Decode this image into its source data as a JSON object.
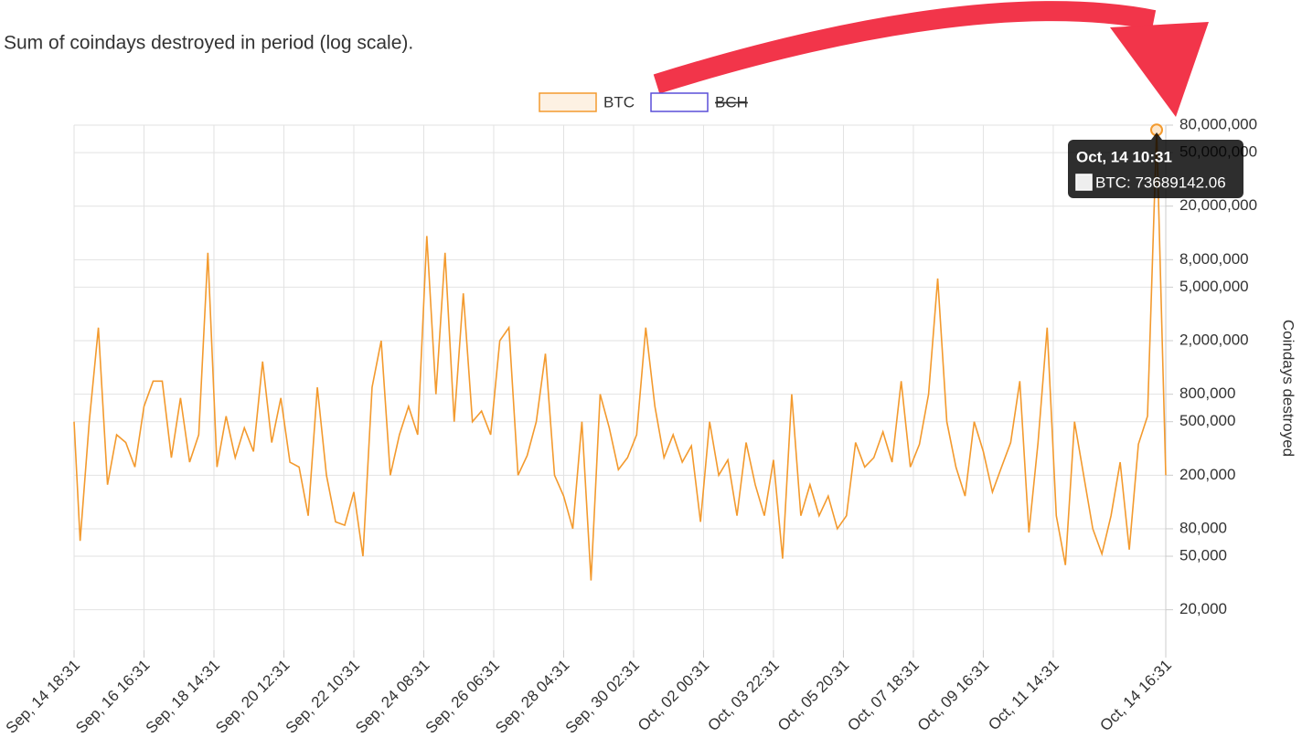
{
  "chart_data": {
    "type": "line",
    "title": "Sum of coindays destroyed in period (log scale).",
    "y_label": "Coindays destroyed",
    "log_scale": true,
    "grid": true,
    "legend": "top",
    "x": [
      "Sep, 14 18:31",
      "Sep, 14 22:31",
      "Sep, 15 04:31",
      "Sep, 15 10:31",
      "Sep, 15 16:31",
      "Sep, 15 22:31",
      "Sep, 16 04:31",
      "Sep, 16 10:31",
      "Sep, 16 16:31",
      "Sep, 16 22:31",
      "Sep, 17 04:31",
      "Sep, 17 10:31",
      "Sep, 17 16:31",
      "Sep, 17 22:31",
      "Sep, 18 04:31",
      "Sep, 18 10:31",
      "Sep, 18 16:31",
      "Sep, 18 22:31",
      "Sep, 19 04:31",
      "Sep, 19 10:31",
      "Sep, 19 16:31",
      "Sep, 19 22:31",
      "Sep, 20 04:31",
      "Sep, 20 10:31",
      "Sep, 20 16:31",
      "Sep, 20 22:31",
      "Sep, 21 04:31",
      "Sep, 21 10:31",
      "Sep, 21 16:31",
      "Sep, 21 22:31",
      "Sep, 22 04:31",
      "Sep, 22 10:31",
      "Sep, 22 16:31",
      "Sep, 22 22:31",
      "Sep, 23 04:31",
      "Sep, 23 10:31",
      "Sep, 23 16:31",
      "Sep, 23 22:31",
      "Sep, 24 04:31",
      "Sep, 24 10:31",
      "Sep, 24 16:31",
      "Sep, 24 22:31",
      "Sep, 25 04:31",
      "Sep, 25 10:31",
      "Sep, 25 16:31",
      "Sep, 25 22:31",
      "Sep, 26 04:31",
      "Sep, 26 10:31",
      "Sep, 26 16:31",
      "Sep, 26 22:31",
      "Sep, 27 04:31",
      "Sep, 27 10:31",
      "Sep, 27 16:31",
      "Sep, 27 22:31",
      "Sep, 28 04:31",
      "Sep, 28 10:31",
      "Sep, 28 16:31",
      "Sep, 28 22:31",
      "Sep, 29 04:31",
      "Sep, 29 10:31",
      "Sep, 29 16:31",
      "Sep, 29 22:31",
      "Sep, 30 04:31",
      "Sep, 30 10:31",
      "Sep, 30 16:31",
      "Sep, 30 22:31",
      "Oct, 01 04:31",
      "Oct, 01 10:31",
      "Oct, 01 16:31",
      "Oct, 01 22:31",
      "Oct, 02 04:31",
      "Oct, 02 10:31",
      "Oct, 02 16:31",
      "Oct, 02 22:31",
      "Oct, 03 04:31",
      "Oct, 03 10:31",
      "Oct, 03 16:31",
      "Oct, 03 22:31",
      "Oct, 04 04:31",
      "Oct, 04 10:31",
      "Oct, 04 16:31",
      "Oct, 04 22:31",
      "Oct, 05 04:31",
      "Oct, 05 10:31",
      "Oct, 05 16:31",
      "Oct, 05 22:31",
      "Oct, 06 04:31",
      "Oct, 06 10:31",
      "Oct, 06 16:31",
      "Oct, 06 22:31",
      "Oct, 07 04:31",
      "Oct, 07 10:31",
      "Oct, 07 16:31",
      "Oct, 07 22:31",
      "Oct, 08 04:31",
      "Oct, 08 10:31",
      "Oct, 08 16:31",
      "Oct, 08 22:31",
      "Oct, 09 04:31",
      "Oct, 09 10:31",
      "Oct, 09 16:31",
      "Oct, 09 22:31",
      "Oct, 10 04:31",
      "Oct, 10 10:31",
      "Oct, 10 16:31",
      "Oct, 10 22:31",
      "Oct, 11 04:31",
      "Oct, 11 10:31",
      "Oct, 11 16:31",
      "Oct, 11 22:31",
      "Oct, 12 04:31",
      "Oct, 12 10:31",
      "Oct, 12 16:31",
      "Oct, 12 22:31",
      "Oct, 13 04:31",
      "Oct, 13 10:31",
      "Oct, 13 16:31",
      "Oct, 13 22:31",
      "Oct, 14 04:31",
      "Oct, 14 10:31",
      "Oct, 14 16:31"
    ],
    "series": [
      {
        "name": "BTC",
        "color": "#f39a2e",
        "hidden": false,
        "values": [
          500000,
          65000,
          500000,
          2500000,
          170000,
          400000,
          350000,
          230000,
          650000,
          1000000,
          1000000,
          270000,
          750000,
          250000,
          400000,
          9000000,
          230000,
          550000,
          270000,
          450000,
          300000,
          1400000,
          350000,
          750000,
          250000,
          230000,
          100000,
          900000,
          200000,
          90000,
          85000,
          150000,
          50000,
          900000,
          2000000,
          200000,
          400000,
          650000,
          400000,
          12000000,
          800000,
          9000000,
          500000,
          4500000,
          500000,
          600000,
          400000,
          2000000,
          2500000,
          200000,
          280000,
          500000,
          1600000,
          200000,
          140000,
          80000,
          500000,
          33000,
          800000,
          450000,
          220000,
          270000,
          400000,
          2500000,
          650000,
          270000,
          400000,
          250000,
          330000,
          90000,
          500000,
          200000,
          260000,
          100000,
          350000,
          170000,
          100000,
          260000,
          48000,
          800000,
          100000,
          170000,
          100000,
          140000,
          80000,
          100000,
          350000,
          230000,
          270000,
          420000,
          250000,
          1000000,
          230000,
          340000,
          800000,
          5800000,
          500000,
          230000,
          140000,
          500000,
          300000,
          150000,
          230000,
          350000,
          1000000,
          75000,
          350000,
          2500000,
          100000,
          43000,
          500000,
          200000,
          80000,
          52000,
          100000,
          250000,
          56000,
          340000,
          550000,
          73689142.06,
          200000
        ]
      },
      {
        "name": "BCH",
        "color": "#5a4fd8",
        "hidden": true,
        "values": [
          null,
          null,
          null,
          null,
          null,
          null,
          null,
          null,
          null,
          null,
          null,
          null,
          null,
          null,
          null,
          null,
          null,
          null,
          null,
          null,
          null,
          null,
          null,
          null,
          null,
          null,
          null,
          null,
          null,
          null,
          null,
          null,
          null,
          null,
          null,
          null,
          null,
          null,
          null,
          null,
          null,
          null,
          null,
          null,
          null,
          null,
          null,
          null,
          null,
          null,
          null,
          null,
          null,
          null,
          null,
          null,
          null,
          null,
          null,
          null,
          null,
          null,
          null,
          null,
          null,
          null,
          null,
          null,
          null,
          null,
          null,
          null,
          null,
          null,
          null,
          null,
          null,
          null,
          null,
          null,
          null,
          null,
          null,
          null,
          null,
          null,
          null,
          null,
          null,
          null,
          null,
          null,
          null,
          null,
          null,
          null,
          null,
          null,
          null,
          null,
          null,
          null,
          null,
          null,
          null,
          null,
          null,
          null,
          null,
          null,
          null,
          null,
          null,
          null,
          null,
          null,
          null,
          null,
          null,
          null,
          null
        ]
      }
    ],
    "xlim": [
      "Sep, 14 18:31",
      "Oct, 14 16:31"
    ],
    "xticks": [
      "Sep, 14 18:31",
      "Sep, 16 16:31",
      "Sep, 18 14:31",
      "Sep, 20 12:31",
      "Sep, 22 10:31",
      "Sep, 24 08:31",
      "Sep, 26 06:31",
      "Sep, 28 04:31",
      "Sep, 30 02:31",
      "Oct, 02 00:31",
      "Oct, 03 22:31",
      "Oct, 05 20:31",
      "Oct, 07 18:31",
      "Oct, 09 16:31",
      "Oct, 11 14:31",
      "Oct, 14 16:31"
    ],
    "ylim": [
      10000,
      80000000
    ],
    "yticks": [
      {
        "value": 20000,
        "label": "20,000"
      },
      {
        "value": 50000,
        "label": "50,000"
      },
      {
        "value": 80000,
        "label": "80,000"
      },
      {
        "value": 200000,
        "label": "200,000"
      },
      {
        "value": 500000,
        "label": "500,000"
      },
      {
        "value": 800000,
        "label": "800,000"
      },
      {
        "value": 2000000,
        "label": "2,000,000"
      },
      {
        "value": 5000000,
        "label": "5,000,000"
      },
      {
        "value": 8000000,
        "label": "8,000,000"
      },
      {
        "value": 20000000,
        "label": "20,000,000"
      },
      {
        "value": 50000000,
        "label": "50,000,000"
      },
      {
        "value": 80000000,
        "label": "80,000,000"
      }
    ],
    "tooltip": {
      "title": "Oct, 14 10:31",
      "label": "BTC: 73689142.06",
      "index": 119
    }
  }
}
